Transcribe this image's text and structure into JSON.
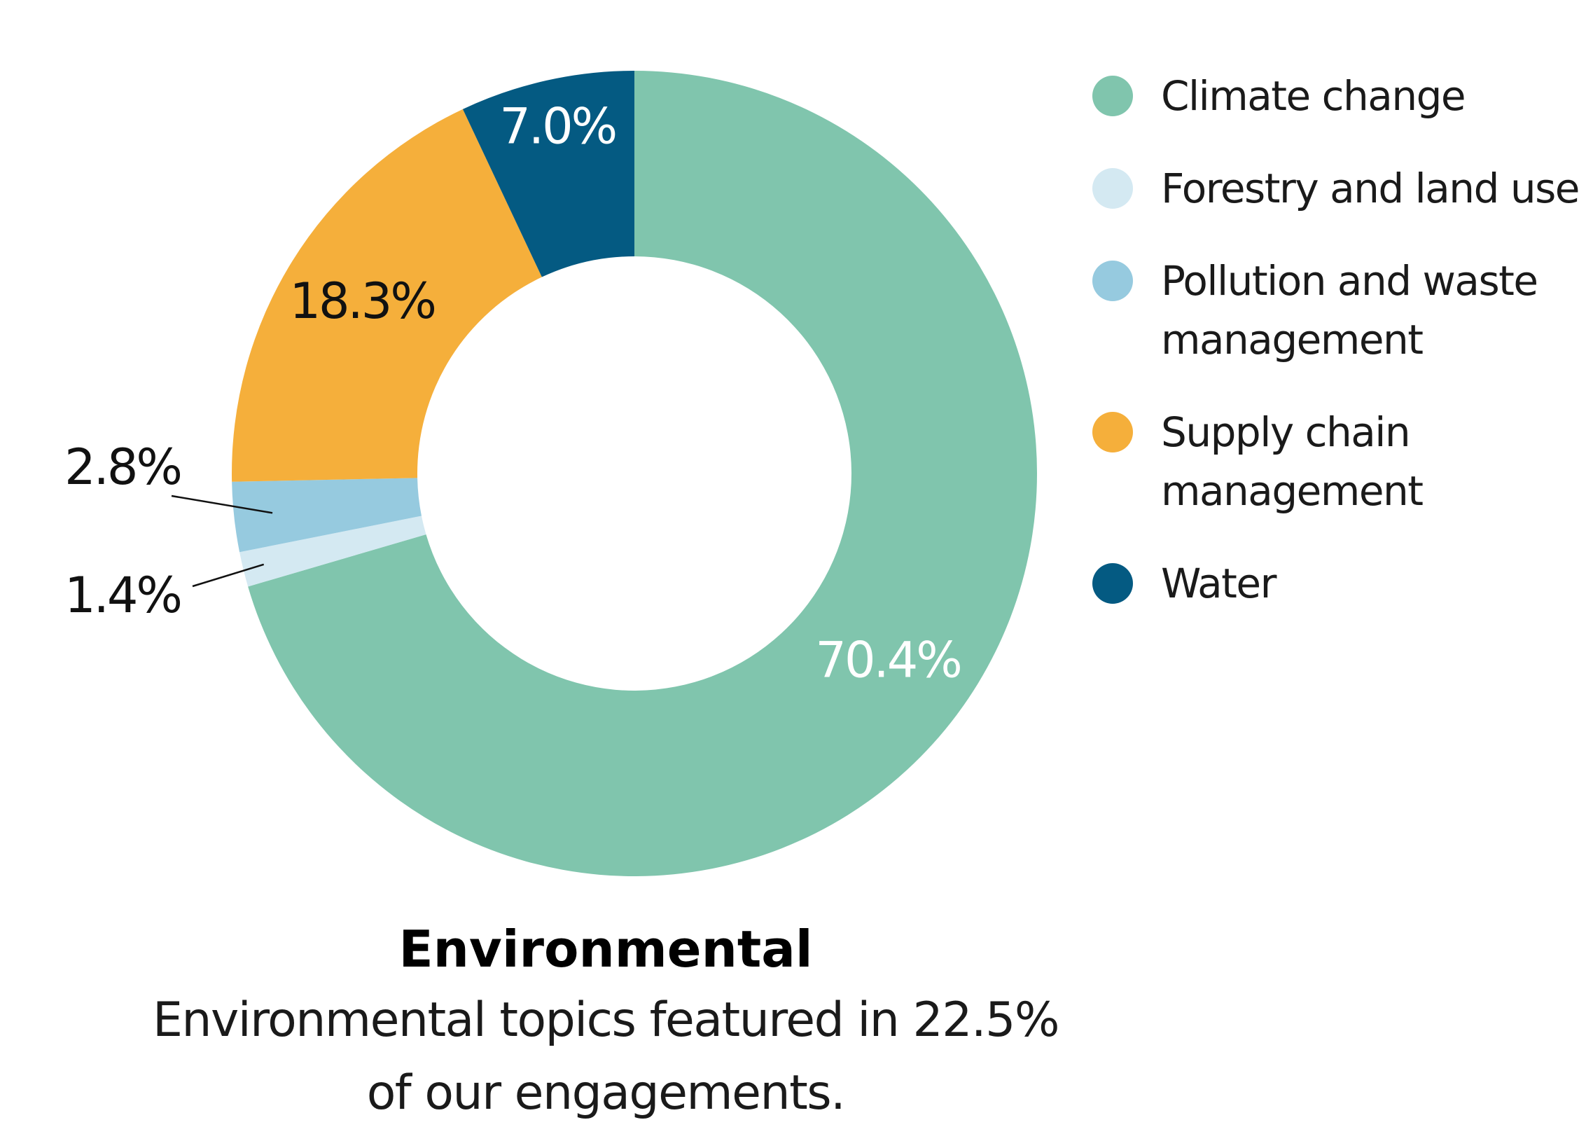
{
  "chart_data": {
    "type": "pie",
    "style": "donut",
    "series": [
      {
        "name": "Climate change",
        "value": 70.4,
        "label": "70.4%",
        "color": "#80c5ad"
      },
      {
        "name": "Forestry and land use",
        "value": 1.4,
        "label": "1.4%",
        "color": "#d4e9f2"
      },
      {
        "name": "Pollution and waste management",
        "value": 2.8,
        "label": "2.8%",
        "color": "#96cadf"
      },
      {
        "name": "Supply chain management",
        "value": 18.3,
        "label": "18.3%",
        "color": "#f5af3b"
      },
      {
        "name": "Water",
        "value": 7.0,
        "label": "7.0%",
        "color": "#045a82"
      }
    ],
    "legend_placement": "right",
    "title": "Environmental",
    "subtitle": "Environmental topics featured in 22.5% of our engagements."
  }
}
